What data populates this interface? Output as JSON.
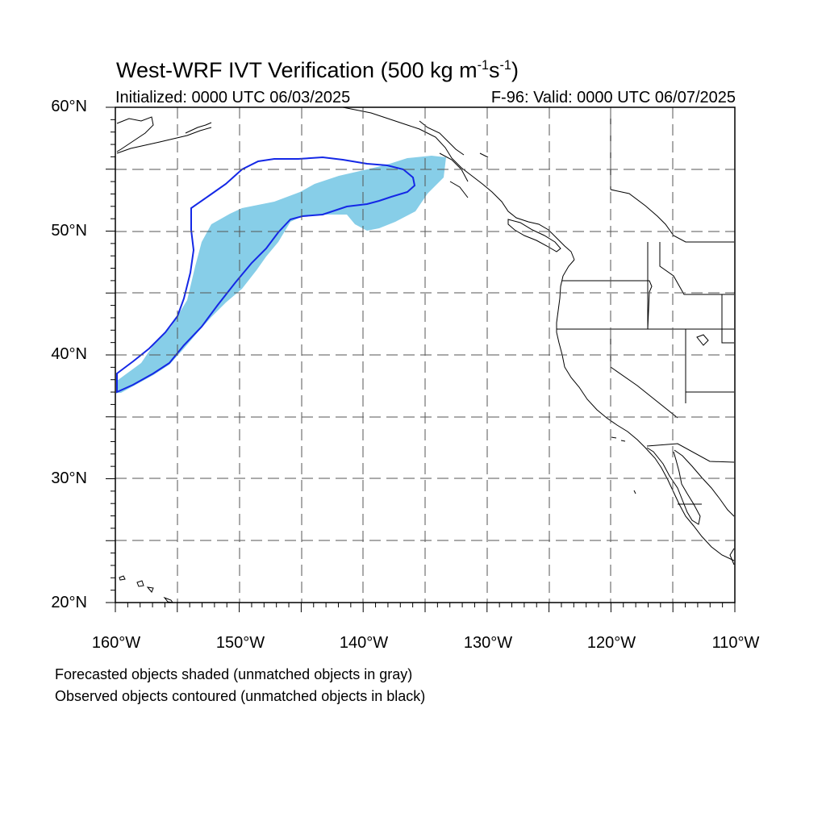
{
  "title": {
    "main": "West-WRF IVT Verification (500 kg m",
    "exp1": "-1",
    "s": "s",
    "exp2": "-1",
    "close": ")"
  },
  "initialized": "Initialized: 0000 UTC 06/03/2025",
  "valid": "F-96: Valid: 0000 UTC 06/07/2025",
  "footnotes": [
    "Forecasted objects shaded (unmatched objects in gray)",
    "Observed objects contoured (unmatched objects in black)"
  ],
  "map": {
    "extent": {
      "lon": [
        -160,
        -110
      ],
      "lat": [
        20,
        60
      ]
    },
    "lat_labels": [
      "60°N",
      "50°N",
      "40°N",
      "30°N",
      "20°N"
    ],
    "lon_labels": [
      "160°W",
      "150°W",
      "140°W",
      "130°W",
      "120°W",
      "110°W"
    ],
    "grid": "dashed every 5°",
    "colors": {
      "forecast_fill": "#87CEE8",
      "observed_contour": "#1428E6",
      "coast": "#000000",
      "grid": "#555555"
    }
  }
}
